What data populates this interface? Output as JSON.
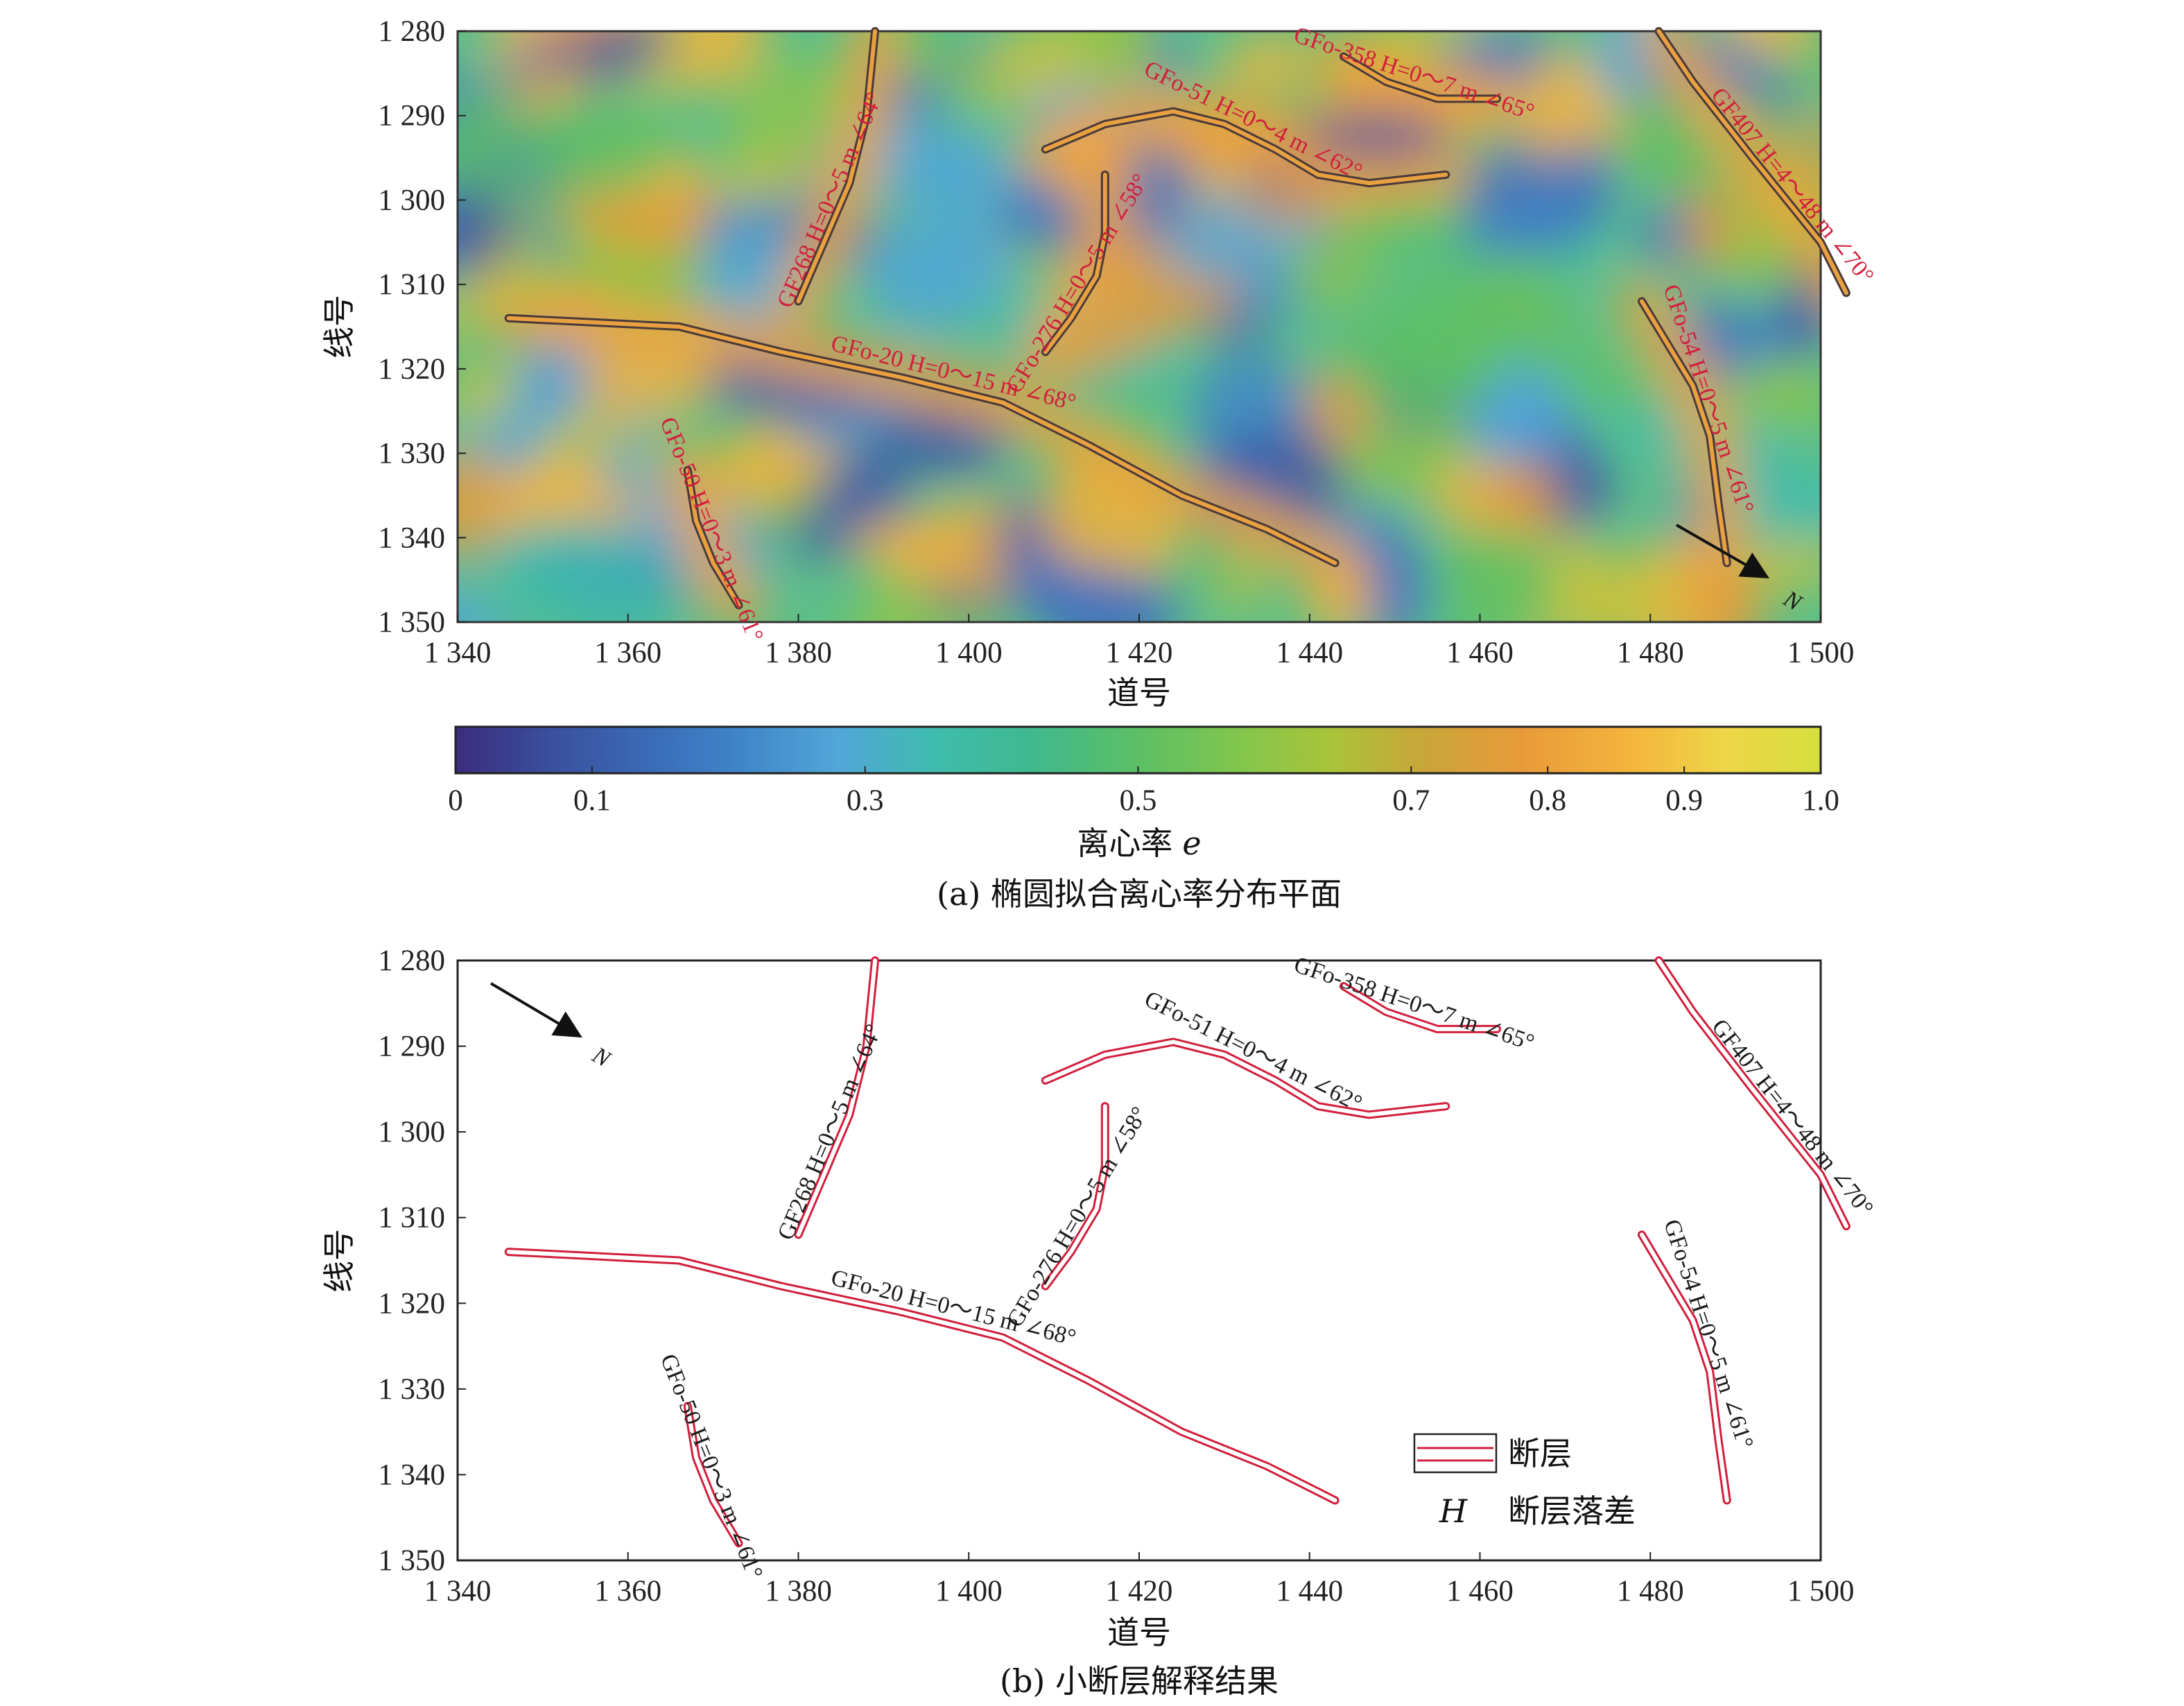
{
  "colorbar": {
    "ticks": [
      "0",
      "0.1",
      "0.3",
      "0.5",
      "0.7",
      "0.8",
      "0.9",
      "1.0"
    ],
    "label_prefix": "离心率",
    "label_symbol": "e",
    "colors": [
      "#3b2c7e",
      "#3a4f9e",
      "#3a6ab6",
      "#3f86c9",
      "#52a6d9",
      "#3fbcae",
      "#3fb98f",
      "#5cbf66",
      "#7fc64e",
      "#a8c43a",
      "#c9a53a",
      "#e89a3a",
      "#f5b43c",
      "#eed648",
      "#d6df3e"
    ]
  },
  "panel_a": {
    "caption": "(a) 椭圆拟合离心率分布平面",
    "ylabel": "线号",
    "xlabel": "道号",
    "xticks": [
      "1 340",
      "1 360",
      "1 380",
      "1 400",
      "1 420",
      "1 440",
      "1 460",
      "1 480",
      "1 500"
    ],
    "yticks": [
      "1 280",
      "1 290",
      "1 300",
      "1 310",
      "1 320",
      "1 330",
      "1 340",
      "1 350"
    ]
  },
  "panel_b": {
    "caption": "(b) 小断层解释结果",
    "ylabel": "线号",
    "xlabel": "道号",
    "xticks": [
      "1 340",
      "1 360",
      "1 380",
      "1 400",
      "1 420",
      "1 440",
      "1 460",
      "1 480",
      "1 500"
    ],
    "yticks": [
      "1 280",
      "1 290",
      "1 300",
      "1 310",
      "1 320",
      "1 330",
      "1 340",
      "1 350"
    ],
    "legend": {
      "fault_label": "断层",
      "h_symbol": "H",
      "h_label": "断层落差"
    }
  },
  "north_label": "N",
  "faults": [
    {
      "id": "GF268",
      "text": "GF268 H=0～5 m ∠64°",
      "points": [
        [
          1389,
          1280
        ],
        [
          1388,
          1290
        ],
        [
          1386,
          1298
        ],
        [
          1383,
          1305
        ],
        [
          1380,
          1312
        ]
      ]
    },
    {
      "id": "GFo-358",
      "text": "GFo-358 H=0～7 m ∠65°",
      "points": [
        [
          1444,
          1283
        ],
        [
          1449,
          1286
        ],
        [
          1455,
          1288
        ],
        [
          1462,
          1288
        ]
      ]
    },
    {
      "id": "GFo-51",
      "text": "GFo-51 H=0～4 m ∠62°",
      "points": [
        [
          1409,
          1294
        ],
        [
          1416,
          1291
        ],
        [
          1424,
          1289.5
        ],
        [
          1430,
          1291
        ],
        [
          1436,
          1294
        ],
        [
          1441,
          1297
        ],
        [
          1447,
          1298
        ],
        [
          1456,
          1297
        ]
      ]
    },
    {
      "id": "GF407",
      "text": "GF407 H=4～48 m ∠70°",
      "points": [
        [
          1481,
          1280
        ],
        [
          1485,
          1286
        ],
        [
          1492,
          1295
        ],
        [
          1500,
          1305
        ],
        [
          1503,
          1311
        ]
      ]
    },
    {
      "id": "GFo-20",
      "text": "GFo-20 H=0～15 m ∠68°",
      "points": [
        [
          1346,
          1314
        ],
        [
          1356,
          1314.5
        ],
        [
          1366,
          1315
        ],
        [
          1378,
          1318
        ],
        [
          1392,
          1321
        ],
        [
          1404,
          1324
        ],
        [
          1414,
          1329
        ],
        [
          1425,
          1335
        ],
        [
          1435,
          1339
        ],
        [
          1443,
          1343
        ]
      ]
    },
    {
      "id": "GFo-276",
      "text": "GFo-276 H=0～5 m ∠58°",
      "points": [
        [
          1416,
          1297
        ],
        [
          1416,
          1304
        ],
        [
          1415,
          1309
        ],
        [
          1412,
          1314
        ],
        [
          1409,
          1318
        ]
      ]
    },
    {
      "id": "GFo-50",
      "text": "GFo-50 H=0～3 m ∠61°",
      "points": [
        [
          1367,
          1332
        ],
        [
          1368,
          1338
        ],
        [
          1370,
          1343
        ],
        [
          1373,
          1348
        ]
      ]
    },
    {
      "id": "GFo-54",
      "text": "GFo-54 H=0～5 m ∠61°",
      "points": [
        [
          1479,
          1312
        ],
        [
          1482,
          1317
        ],
        [
          1485,
          1322
        ],
        [
          1487,
          1328
        ],
        [
          1488,
          1336
        ],
        [
          1489,
          1343
        ]
      ]
    }
  ]
}
